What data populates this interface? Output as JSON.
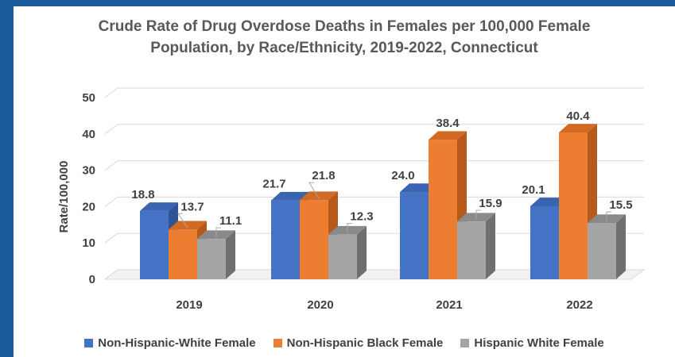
{
  "chart_data": {
    "type": "bar",
    "title_lines": [
      "Crude Rate of Drug Overdose Deaths in Females per 100,000 Female",
      "Population, by Race/Ethnicity, 2019-2022, Connecticut"
    ],
    "ylabel": "Rate/100,000",
    "xlabel": "",
    "categories": [
      "2019",
      "2020",
      "2021",
      "2022"
    ],
    "yticks": [
      0,
      10,
      20,
      30,
      40,
      50
    ],
    "ylim": [
      0,
      50
    ],
    "grid": true,
    "legend_position": "bottom",
    "series": [
      {
        "name": "Non-Hispanic-White Female",
        "values": [
          18.8,
          21.7,
          24.0,
          20.1
        ],
        "labels": [
          "18.8",
          "21.7",
          "24.0",
          "20.1"
        ],
        "color": "#4472c4",
        "side_color": "#2f5597",
        "top_color": "#3a63b0"
      },
      {
        "name": "Non-Hispanic Black Female",
        "values": [
          13.7,
          21.8,
          38.4,
          40.4
        ],
        "labels": [
          "13.7",
          "21.8",
          "38.4",
          "40.4"
        ],
        "color": "#ed7d31",
        "side_color": "#b65a1c",
        "top_color": "#d16a22"
      },
      {
        "name": "Hispanic White Female",
        "values": [
          11.1,
          12.3,
          15.9,
          15.5
        ],
        "labels": [
          "11.1",
          "12.3",
          "15.9",
          "15.5"
        ],
        "color": "#a5a5a5",
        "side_color": "#6f6f6f",
        "top_color": "#8a8a8a"
      }
    ]
  }
}
